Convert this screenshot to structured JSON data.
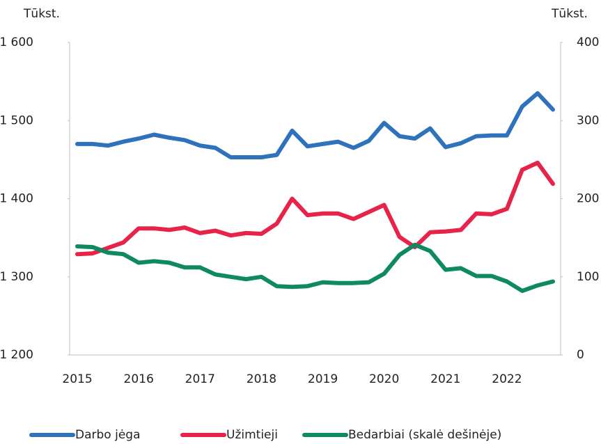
{
  "chart_data": {
    "type": "line",
    "y_label": "Tūkst.",
    "y2_label": "Tūkst.",
    "categories": [
      "2015",
      null,
      null,
      null,
      "2016",
      null,
      null,
      null,
      "2017",
      null,
      null,
      null,
      "2018",
      null,
      null,
      null,
      "2019",
      null,
      null,
      null,
      "2020",
      null,
      null,
      null,
      "2021",
      null,
      null,
      null,
      "2022",
      null,
      null,
      null
    ],
    "series": [
      {
        "name": "Darbo jėga",
        "color": "#2f72bc",
        "values": [
          1470,
          1470,
          1468,
          1473,
          1477,
          1482,
          1478,
          1475,
          1468,
          1465,
          1453,
          1453,
          1453,
          1456,
          1487,
          1467,
          1470,
          1473,
          1465,
          1474,
          1497,
          1480,
          1477,
          1490,
          1466,
          1471,
          1480,
          1481,
          1481,
          1518,
          1535,
          1514
        ]
      },
      {
        "name": "Užimtieji",
        "color": "#e8234a",
        "values": [
          1329,
          1330,
          1337,
          1344,
          1362,
          1362,
          1360,
          1363,
          1356,
          1359,
          1353,
          1356,
          1355,
          1368,
          1400,
          1379,
          1381,
          1381,
          1374,
          1383,
          1392,
          1351,
          1338,
          1357,
          1358,
          1360,
          1381,
          1380,
          1387,
          1437,
          1446,
          1419
        ]
      },
      {
        "name": "Bedarbiai (skalė dešinėje)",
        "color": "#0f8a5f",
        "axis": "y2",
        "values": [
          139,
          138,
          131,
          129,
          118,
          120,
          118,
          112,
          112,
          103,
          100,
          97,
          100,
          88,
          87,
          88,
          93,
          92,
          92,
          93,
          104,
          128,
          141,
          133,
          109,
          111,
          101,
          101,
          94,
          82,
          89,
          94
        ]
      }
    ],
    "ylim": [
      1200,
      1600
    ],
    "yticks": [
      {
        "value": 1200,
        "label": "1 200"
      },
      {
        "value": 1300,
        "label": "1 300"
      },
      {
        "value": 1400,
        "label": "1 400"
      },
      {
        "value": 1500,
        "label": "1 500"
      },
      {
        "value": 1600,
        "label": "1 600"
      }
    ],
    "y2lim": [
      0,
      400
    ],
    "y2ticks": [
      0,
      100,
      200,
      300,
      400
    ],
    "legend": "bottom"
  }
}
